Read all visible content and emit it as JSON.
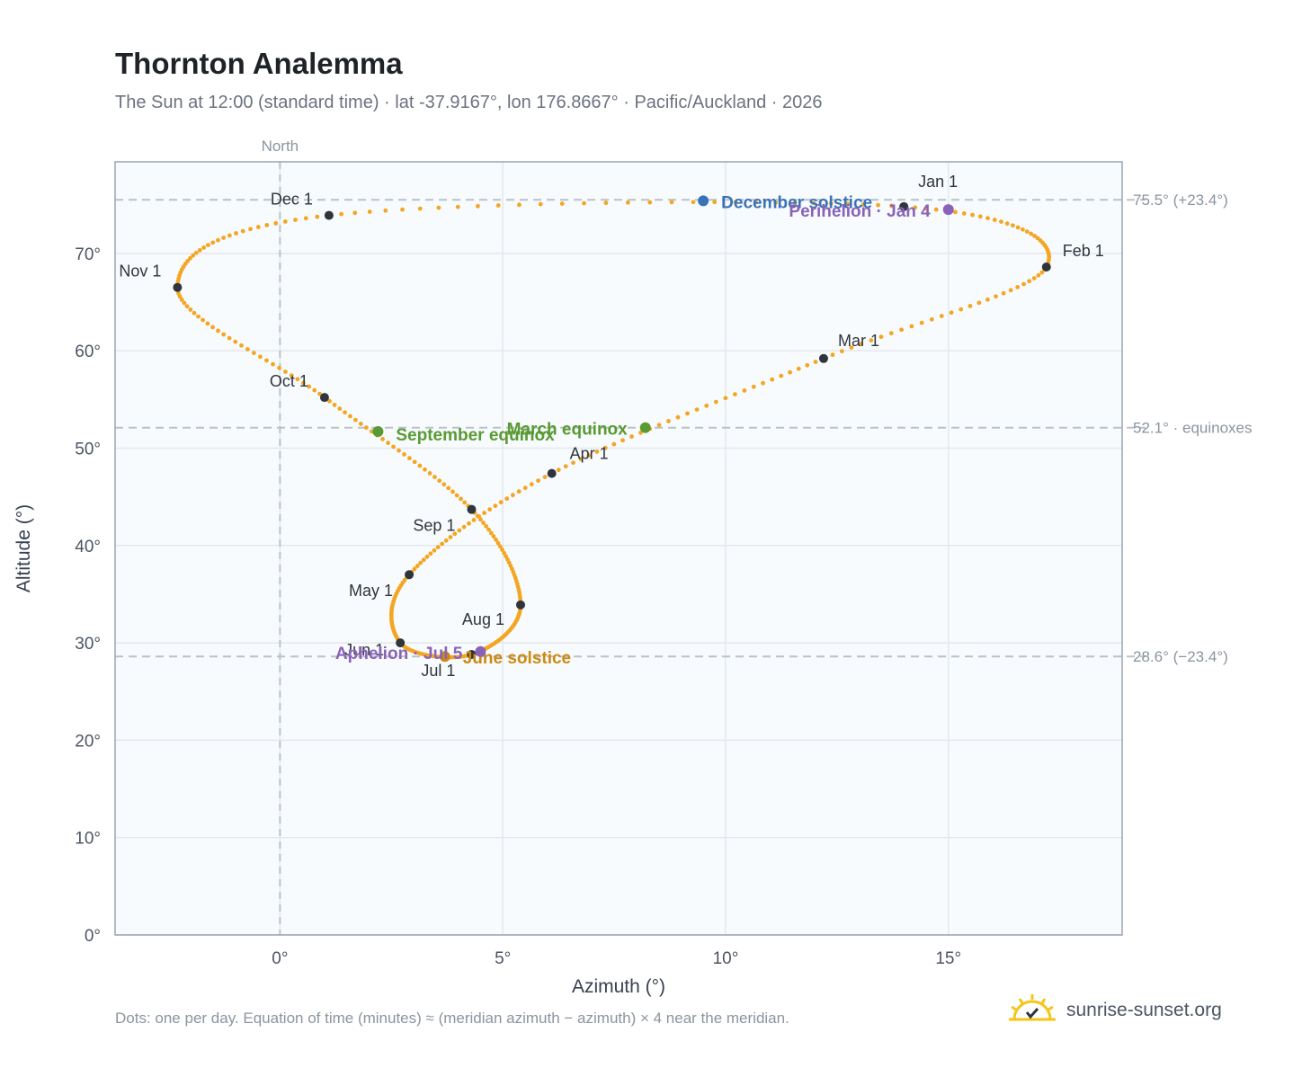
{
  "title": "Thornton Analemma",
  "subtitle": "The Sun at 12:00 (standard time) · lat -37.9167°, lon 176.8667° · Pacific/Auckland · 2026",
  "footnote": "Dots: one per day. Equation of time (minutes) ≈ (meridian azimuth − azimuth) × 4 near the meridian.",
  "brand": {
    "text": "sunrise-sunset.org",
    "icon": "sun-horizon-icon"
  },
  "chart_data": {
    "type": "scatter",
    "xlabel": "Azimuth (°)",
    "ylabel": "Altitude (°)",
    "xlim": [
      -3.7,
      18.9
    ],
    "ylim": [
      0,
      79.4
    ],
    "x_ticks": [
      0,
      5,
      10,
      15
    ],
    "x_tick_labels": [
      "0°",
      "5°",
      "10°",
      "15°"
    ],
    "y_ticks": [
      0,
      10,
      20,
      30,
      40,
      50,
      60,
      70
    ],
    "y_tick_labels": [
      "0°",
      "10°",
      "20°",
      "30°",
      "40°",
      "50°",
      "60°",
      "70°"
    ],
    "grid": true,
    "meridian": {
      "x": 0,
      "label": "North"
    },
    "reference_lines": [
      {
        "y": 75.5,
        "label": "75.5° (+23.4°)"
      },
      {
        "y": 52.1,
        "label": "52.1° · equinoxes"
      },
      {
        "y": 28.6,
        "label": "28.6° (−23.4°)"
      }
    ],
    "month_markers": [
      {
        "label": "Jan 1",
        "x": 14.0,
        "y": 74.8
      },
      {
        "label": "Feb 1",
        "x": 17.2,
        "y": 68.6
      },
      {
        "label": "Mar 1",
        "x": 12.2,
        "y": 59.2
      },
      {
        "label": "Apr 1",
        "x": 6.1,
        "y": 47.4
      },
      {
        "label": "May 1",
        "x": 2.9,
        "y": 37.0
      },
      {
        "label": "Jun 1",
        "x": 2.7,
        "y": 30.0
      },
      {
        "label": "Jul 1",
        "x": 4.3,
        "y": 28.8
      },
      {
        "label": "Aug 1",
        "x": 5.4,
        "y": 33.9
      },
      {
        "label": "Sep 1",
        "x": 4.3,
        "y": 43.7
      },
      {
        "label": "Oct 1",
        "x": 1.0,
        "y": 55.2
      },
      {
        "label": "Nov 1",
        "x": -2.3,
        "y": 66.5
      },
      {
        "label": "Dec 1",
        "x": 1.1,
        "y": 73.9
      }
    ],
    "events": [
      {
        "label": "December solstice",
        "x": 9.5,
        "y": 75.4,
        "color": "#3a72b8"
      },
      {
        "label": "Perihelion · Jan 4",
        "x": 15.0,
        "y": 74.5,
        "color": "#8a63b8"
      },
      {
        "label": "March equinox",
        "x": 8.2,
        "y": 52.1,
        "color": "#5a9a32"
      },
      {
        "label": "September equinox",
        "x": 2.2,
        "y": 51.7,
        "color": "#5a9a32"
      },
      {
        "label": "June solstice",
        "x": 3.7,
        "y": 28.6,
        "color": "#cc8a12"
      },
      {
        "label": "Aphelion · Jul 5",
        "x": 4.5,
        "y": 29.1,
        "color": "#8a63b8"
      }
    ],
    "series_color": "#f4a623",
    "marker_color": "#2f353d",
    "points_per_day": 1
  }
}
